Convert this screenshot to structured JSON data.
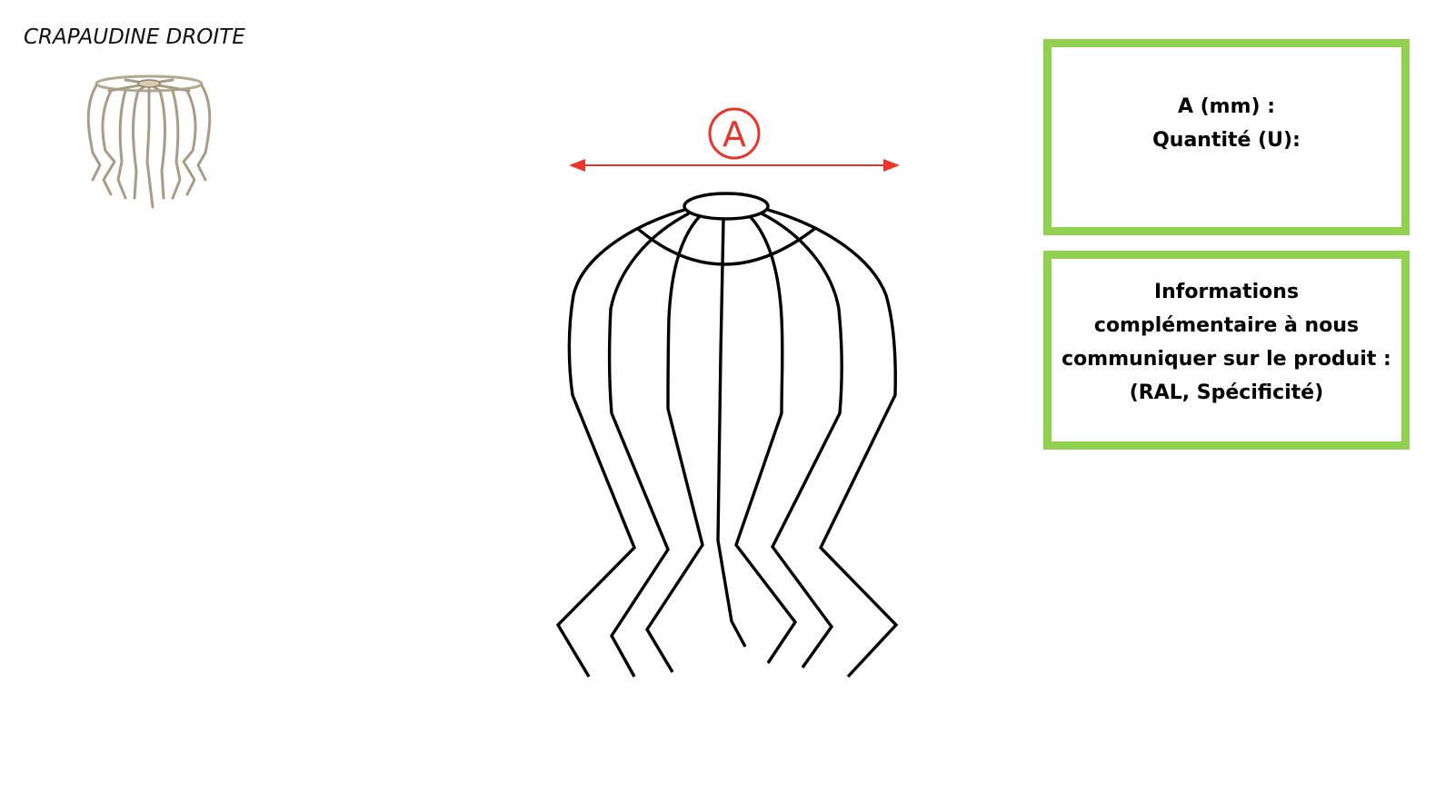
{
  "product": {
    "title": "CRAPAUDINE DROITE"
  },
  "dimension": {
    "label": "A"
  },
  "form_box": {
    "line1": "A (mm) :",
    "line2": "Quantité (U):"
  },
  "info_box": {
    "line1": "Informations",
    "line2": "complémentaire à nous",
    "line3": "communiquer sur le produit :",
    "line4": "(RAL, Spécificité)"
  },
  "colors": {
    "dimension_red": "#e8352b",
    "box_green": "#92d050",
    "wire_black": "#000000",
    "thumbnail_metal": "#b5a890"
  },
  "icons": {
    "dimension_arrow": "double-arrow-icon",
    "product_thumbnail": "wire-strainer-icon"
  }
}
